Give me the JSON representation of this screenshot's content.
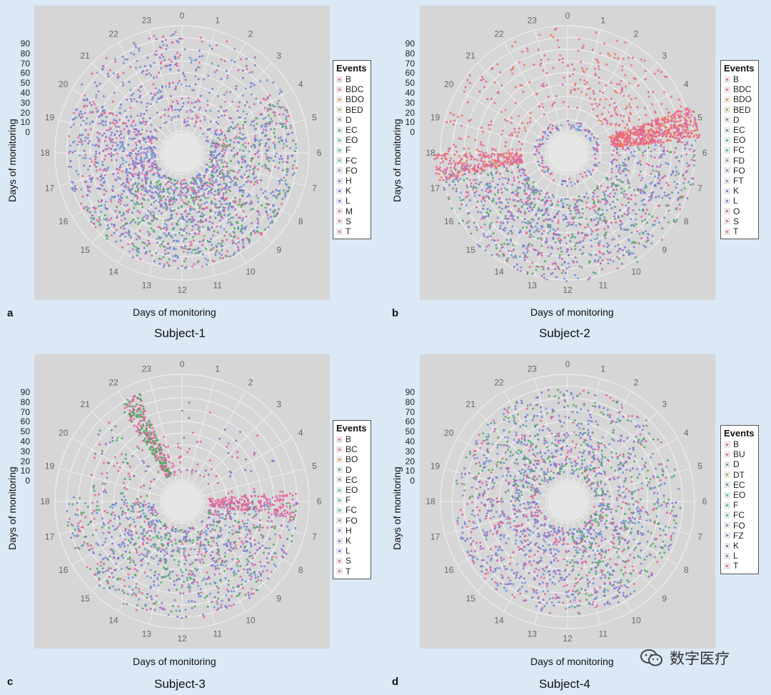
{
  "colors": {
    "page_bg": "#dbe8f6",
    "plot_bg": "#d6d6d6",
    "ring": "#eeeeee",
    "pink": "#e0609a",
    "purple": "#8070cc",
    "blue": "#6a90d8",
    "green": "#4aa860",
    "teal": "#40b8b0",
    "salmon": "#f07060",
    "orange": "#e09040"
  },
  "watermark": {
    "text": "数字医疗",
    "icon": "wechat-icon"
  },
  "chart_data": [
    {
      "type": "scatter",
      "polar": true,
      "panel_letter": "a",
      "subject": "Subject-1",
      "xlabel": "Days of monitoring",
      "ylabel": "Days of monitoring",
      "angle_ticks": [
        "0",
        "1",
        "2",
        "3",
        "4",
        "5",
        "6",
        "7",
        "8",
        "9",
        "10",
        "11",
        "12",
        "13",
        "14",
        "15",
        "16",
        "17",
        "18",
        "19",
        "20",
        "21",
        "22",
        "23"
      ],
      "radial_ticks": [
        "90",
        "80",
        "70",
        "60",
        "50",
        "40",
        "30",
        "20",
        "10",
        "0"
      ],
      "radial_range": [
        0,
        90
      ],
      "legend_title": "Events",
      "legend": [
        "B",
        "BDC",
        "BDO",
        "BED",
        "D",
        "EC",
        "EO",
        "F",
        "FC",
        "FO",
        "H",
        "K",
        "L",
        "M",
        "S",
        "T"
      ],
      "legend_colors": [
        "#e0609a",
        "#f07060",
        "#e09040",
        "#c0a040",
        "#4aa860",
        "#4aa860",
        "#40b8b0",
        "#40b8b0",
        "#40b8b0",
        "#6a90d8",
        "#8070cc",
        "#8070cc",
        "#8070cc",
        "#e0609a",
        "#e0609a",
        "#e0609a"
      ],
      "density": [
        {
          "h0": 0,
          "h1": 4,
          "d0": 5,
          "d1": 85,
          "n": 160,
          "colors": [
            "pink",
            "purple",
            "blue"
          ]
        },
        {
          "h0": 4,
          "h1": 8,
          "d0": 5,
          "d1": 80,
          "n": 420,
          "colors": [
            "purple",
            "pink",
            "blue",
            "green"
          ]
        },
        {
          "h0": 8,
          "h1": 12,
          "d0": 5,
          "d1": 80,
          "n": 520,
          "colors": [
            "purple",
            "pink",
            "blue",
            "green"
          ]
        },
        {
          "h0": 12,
          "h1": 16,
          "d0": 5,
          "d1": 80,
          "n": 480,
          "colors": [
            "purple",
            "pink",
            "blue",
            "green"
          ]
        },
        {
          "h0": 16,
          "h1": 20,
          "d0": 5,
          "d1": 80,
          "n": 460,
          "colors": [
            "purple",
            "pink",
            "blue"
          ]
        },
        {
          "h0": 20,
          "h1": 24,
          "d0": 10,
          "d1": 85,
          "n": 220,
          "colors": [
            "pink",
            "purple",
            "blue"
          ]
        }
      ]
    },
    {
      "type": "scatter",
      "polar": true,
      "panel_letter": "b",
      "subject": "Subject-2",
      "xlabel": "Days of monitoring",
      "ylabel": "Days of monitoring",
      "angle_ticks": [
        "0",
        "1",
        "2",
        "3",
        "4",
        "5",
        "6",
        "7",
        "8",
        "9",
        "10",
        "11",
        "12",
        "13",
        "14",
        "15",
        "16",
        "17",
        "18",
        "19",
        "20",
        "21",
        "22",
        "23"
      ],
      "radial_ticks": [
        "90",
        "80",
        "70",
        "60",
        "50",
        "40",
        "30",
        "20",
        "10",
        "0"
      ],
      "radial_range": [
        0,
        90
      ],
      "legend_title": "Events",
      "legend": [
        "B",
        "BDC",
        "BDO",
        "BED",
        "D",
        "EC",
        "EO",
        "FC",
        "FD",
        "FO",
        "FT",
        "K",
        "L",
        "O",
        "S",
        "T"
      ],
      "legend_colors": [
        "#e0609a",
        "#f07060",
        "#e09040",
        "#c0a040",
        "#4aa860",
        "#4aa860",
        "#40b8b0",
        "#40b8b0",
        "#6a90d8",
        "#6a90d8",
        "#6a90d8",
        "#8070cc",
        "#8070cc",
        "#e0609a",
        "#e0609a",
        "#f07060"
      ],
      "density": [
        {
          "h0": 18,
          "h1": 24,
          "d0": 20,
          "d1": 88,
          "n": 150,
          "colors": [
            "pink",
            "salmon"
          ]
        },
        {
          "h0": 0,
          "h1": 5,
          "d0": 20,
          "d1": 88,
          "n": 180,
          "colors": [
            "pink",
            "salmon"
          ]
        },
        {
          "h0": 4.6,
          "h1": 5.6,
          "d0": 20,
          "d1": 95,
          "n": 550,
          "colors": [
            "salmon",
            "pink"
          ]
        },
        {
          "h0": 5.6,
          "h1": 12,
          "d0": 20,
          "d1": 92,
          "n": 580,
          "colors": [
            "purple",
            "blue",
            "pink",
            "green"
          ]
        },
        {
          "h0": 12,
          "h1": 17.5,
          "d0": 20,
          "d1": 92,
          "n": 600,
          "colors": [
            "purple",
            "blue",
            "pink",
            "green"
          ]
        },
        {
          "h0": 17.2,
          "h1": 18,
          "d0": 20,
          "d1": 95,
          "n": 260,
          "colors": [
            "salmon",
            "pink"
          ]
        },
        {
          "h0": 0,
          "h1": 24,
          "d0": 3,
          "d1": 10,
          "n": 120,
          "colors": [
            "pink",
            "purple",
            "blue"
          ]
        }
      ]
    },
    {
      "type": "scatter",
      "polar": true,
      "panel_letter": "c",
      "subject": "Subject-3",
      "xlabel": "Days of monitoring",
      "ylabel": "Days of monitoring",
      "angle_ticks": [
        "0",
        "1",
        "2",
        "3",
        "4",
        "5",
        "6",
        "7",
        "8",
        "9",
        "10",
        "11",
        "12",
        "13",
        "14",
        "15",
        "16",
        "17",
        "18",
        "19",
        "20",
        "21",
        "22",
        "23"
      ],
      "radial_ticks": [
        "90",
        "80",
        "70",
        "60",
        "50",
        "40",
        "30",
        "20",
        "10",
        "0"
      ],
      "radial_range": [
        0,
        90
      ],
      "legend_title": "Events",
      "legend": [
        "B",
        "BC",
        "BO",
        "D",
        "EC",
        "EO",
        "F",
        "FC",
        "FO",
        "H",
        "K",
        "L",
        "S",
        "T"
      ],
      "legend_colors": [
        "#e0609a",
        "#f07060",
        "#e09040",
        "#4aa860",
        "#4aa860",
        "#40b8b0",
        "#40b8b0",
        "#40b8b0",
        "#6a90d8",
        "#8070cc",
        "#8070cc",
        "#8070cc",
        "#e0609a",
        "#e0609a"
      ],
      "density": [
        {
          "h0": 21.8,
          "h1": 22.6,
          "d0": 5,
          "d1": 80,
          "n": 300,
          "colors": [
            "pink",
            "green"
          ]
        },
        {
          "h0": 6,
          "h1": 12,
          "d0": 5,
          "d1": 82,
          "n": 560,
          "colors": [
            "purple",
            "blue",
            "green",
            "pink"
          ]
        },
        {
          "h0": 12,
          "h1": 18,
          "d0": 5,
          "d1": 82,
          "n": 520,
          "colors": [
            "purple",
            "green",
            "pink",
            "blue"
          ]
        },
        {
          "h0": 5.6,
          "h1": 6.6,
          "d0": 5,
          "d1": 80,
          "n": 200,
          "colors": [
            "pink"
          ]
        },
        {
          "h0": 18,
          "h1": 21.5,
          "d0": 10,
          "d1": 75,
          "n": 80,
          "colors": [
            "purple",
            "pink",
            "green"
          ]
        },
        {
          "h0": 22.6,
          "h1": 24,
          "d0": 5,
          "d1": 40,
          "n": 25,
          "colors": [
            "pink"
          ]
        },
        {
          "h0": 0,
          "h1": 5.6,
          "d0": 5,
          "d1": 70,
          "n": 50,
          "colors": [
            "pink",
            "purple"
          ]
        }
      ]
    },
    {
      "type": "scatter",
      "polar": true,
      "panel_letter": "d",
      "subject": "Subject-4",
      "xlabel": "Days of monitoring",
      "ylabel": "Days of monitoring",
      "angle_ticks": [
        "0",
        "1",
        "2",
        "3",
        "4",
        "5",
        "6",
        "7",
        "8",
        "9",
        "10",
        "11",
        "12",
        "13",
        "14",
        "15",
        "16",
        "17",
        "18",
        "19",
        "20",
        "21",
        "22",
        "23"
      ],
      "radial_ticks": [
        "90",
        "80",
        "70",
        "60",
        "50",
        "40",
        "30",
        "20",
        "10",
        "0"
      ],
      "radial_range": [
        0,
        90
      ],
      "legend_title": "Events",
      "legend": [
        "B",
        "BU",
        "D",
        "DT",
        "EC",
        "EO",
        "F",
        "FC",
        "FO",
        "FZ",
        "K",
        "L",
        "T"
      ],
      "legend_colors": [
        "#e0609a",
        "#f07060",
        "#4aa860",
        "#c0a040",
        "#4aa860",
        "#40b8b0",
        "#40b8b0",
        "#40b8b0",
        "#6a90d8",
        "#6a90d8",
        "#8070cc",
        "#8070cc",
        "#e0609a"
      ],
      "density": [
        {
          "h0": 0,
          "h1": 6,
          "d0": 5,
          "d1": 78,
          "n": 380,
          "colors": [
            "blue",
            "purple",
            "green",
            "pink"
          ]
        },
        {
          "h0": 6,
          "h1": 12,
          "d0": 5,
          "d1": 78,
          "n": 520,
          "colors": [
            "pink",
            "purple",
            "blue",
            "green"
          ]
        },
        {
          "h0": 12,
          "h1": 18,
          "d0": 5,
          "d1": 78,
          "n": 500,
          "colors": [
            "purple",
            "pink",
            "blue"
          ]
        },
        {
          "h0": 18,
          "h1": 24,
          "d0": 5,
          "d1": 78,
          "n": 480,
          "colors": [
            "blue",
            "purple",
            "pink",
            "green"
          ]
        }
      ]
    }
  ]
}
